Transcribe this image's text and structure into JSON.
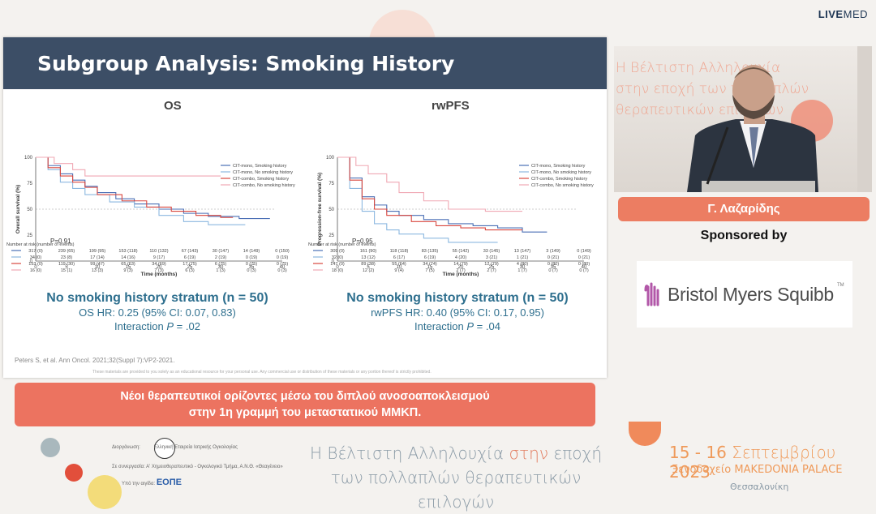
{
  "brand": {
    "bold": "LIVE",
    "thin": "MED"
  },
  "slide": {
    "title": "Subgroup Analysis: Smoking History",
    "os_panel": {
      "title": "OS",
      "ylabel": "Overall survival (%)",
      "xlabel": "Time (months)",
      "pvalue": "P=0.91",
      "yticks": [
        "100",
        "75",
        "50",
        "25",
        "0"
      ],
      "xticks": [
        "0",
        "5",
        "10",
        "15",
        "20",
        "25",
        "30",
        "35",
        "40"
      ],
      "legend": [
        "CIT-mono, Smoking history",
        "CIT-mono, No smoking history",
        "CIT-combo, Smoking history",
        "CIT-combo, No smoking history"
      ],
      "risk_header": "Number at risk (number of events)",
      "risk_rows": [
        [
          "317 (0)",
          "239 (65)",
          "199 (95)",
          "153 (118)",
          "110 (132)",
          "67 (143)",
          "30 (147)",
          "14 (149)",
          "0 (150)"
        ],
        [
          "34 (0)",
          "23 (8)",
          "17 (14)",
          "14 (16)",
          "9 (17)",
          "6 (19)",
          "2 (19)",
          "0 (19)",
          "0 (19)"
        ],
        [
          "153 (0)",
          "119 (30)",
          "99 (47)",
          "65 (63)",
          "34 (69)",
          "17 (75)",
          "6 (75)",
          "0 (75)",
          "0 (75)"
        ],
        [
          "16 (0)",
          "15 (1)",
          "13 (3)",
          "9 (3)",
          "7 (3)",
          "6 (3)",
          "1 (3)",
          "0 (3)",
          "0 (3)"
        ]
      ],
      "stratum_heading": "No smoking history stratum (n = 50)",
      "hr_line": "OS HR: 0.25 (95% CI: 0.07, 0.83)",
      "interaction_label": "Interaction ",
      "interaction_p": "P",
      "interaction_value": " = .02"
    },
    "pfs_panel": {
      "title": "rwPFS",
      "ylabel": "Progression-free survival (%)",
      "xlabel": "Time (months)",
      "pvalue": "P=0.95",
      "yticks": [
        "100",
        "75",
        "50",
        "25",
        "0"
      ],
      "xticks": [
        "0",
        "5",
        "10",
        "15",
        "20",
        "25",
        "30",
        "35",
        "40"
      ],
      "legend": [
        "CIT-mono, Smoking history",
        "CIT-mono, No smoking history",
        "CIT-combo, Smoking history",
        "CIT-combo, No smoking history"
      ],
      "risk_header": "Number at risk (number of events)",
      "risk_rows": [
        [
          "309 (0)",
          "161 (90)",
          "118 (118)",
          "83 (135)",
          "55 (142)",
          "33 (145)",
          "13 (147)",
          "3 (149)",
          "0 (149)"
        ],
        [
          "32 (0)",
          "13 (12)",
          "6 (17)",
          "6 (19)",
          "4 (20)",
          "3 (21)",
          "1 (21)",
          "0 (21)",
          "0 (21)"
        ],
        [
          "147 (0)",
          "89 (38)",
          "55 (64)",
          "34 (74)",
          "14 (79)",
          "12 (79)",
          "4 (80)",
          "0 (80)",
          "0 (80)"
        ],
        [
          "18 (0)",
          "12 (2)",
          "9 (4)",
          "7 (5)",
          "2 (7)",
          "2 (7)",
          "1 (7)",
          "0 (7)",
          "0 (7)"
        ]
      ],
      "stratum_heading": "No smoking history stratum (n = 50)",
      "hr_line": "rwPFS HR: 0.40 (95% CI: 0.17, 0.95)",
      "interaction_label": "Interaction ",
      "interaction_p": "P",
      "interaction_value": " = .04"
    },
    "citation": "Peters S, et al. Ann Oncol. 2021;32(Suppl 7):VP2-2021.",
    "disclaimer": "These materials are provided to you solely as an educational resource for your personal use. Any commercial use or distribution of these materials or any portion thereof is strictly prohibited."
  },
  "speaker": {
    "name": "Γ. Λαζαρίδης",
    "backdrop_text": [
      "Η Βέλτιστη Αλληλουχία",
      "στην εποχή των πολλαπλών",
      "θεραπευτικών επιλογών"
    ]
  },
  "sponsor": {
    "label": "Sponsored by",
    "company": "Bristol Myers Squibb"
  },
  "caption": {
    "line1": "Νέοι θεραπευτικοί ορίζοντες μέσω του διπλού ανοσοαποκλεισμού",
    "line2": "στην 1η γραμμή του μεταστατικού ΜΜΚΠ."
  },
  "footer": {
    "org1_label": "Διοργάνωση:",
    "org1_name": "Ελληνική Εταιρεία Ιατρικής Ογκολογίας",
    "org2_label": "Σε συνεργασία:",
    "org2_name": "Α' Χημειοθεραπευτικό - Ογκολογικό Τμήμα, Α.Ν.Θ. «Θεαγένειο»",
    "org3_label": "Υπό την αιγίδα:",
    "org3_name": "ΕΟΠΕ",
    "event_line1_a": "Η Βέλτιστη Αλληλουχία ",
    "event_line1_b": "στην",
    "event_line1_c": " εποχή",
    "event_line2": "των πολλαπλών θεραπευτικών επιλογών",
    "dates_days": "15 - 16 ",
    "dates_month": "Σεπτεμβρίου",
    "dates_year": " 2023",
    "venue": "Ξενοδοχείο MAKEDONIA PALACE",
    "city": "Θεσσαλονίκη"
  },
  "colors": {
    "mono_smoke": "#4a6fb5",
    "mono_nosmoke": "#8cb8e0",
    "combo_smoke": "#d9473f",
    "combo_nosmoke": "#f0a8b4",
    "header": "#3c4e66",
    "accent": "#ec7360"
  }
}
